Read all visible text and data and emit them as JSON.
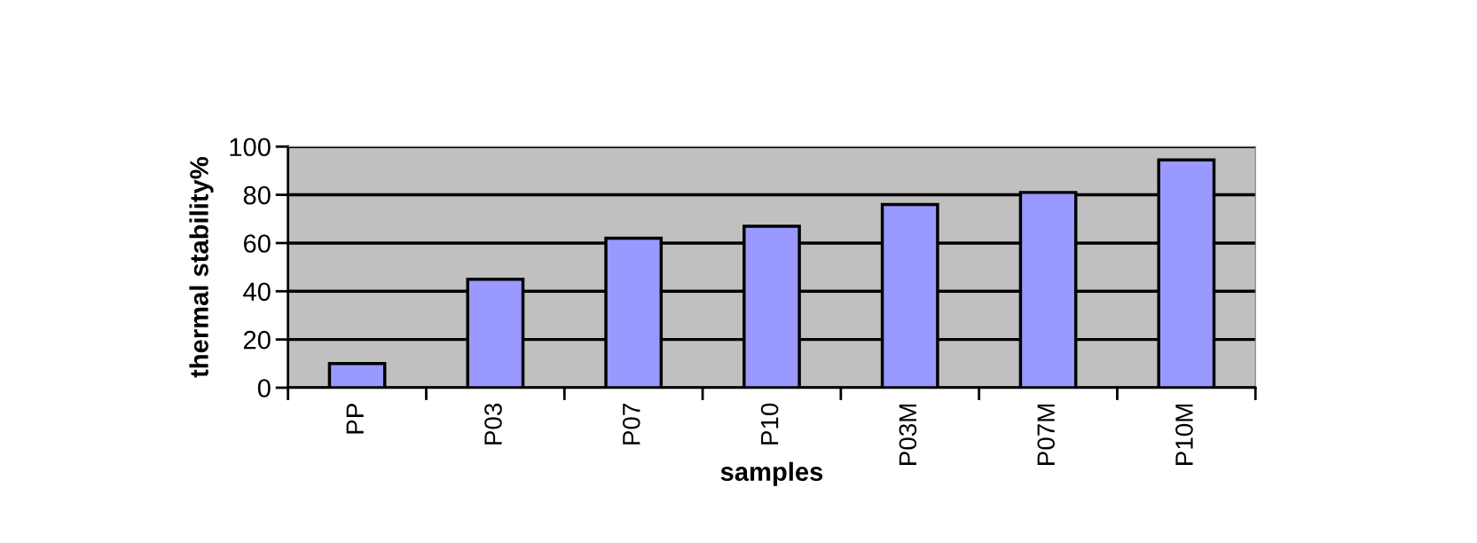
{
  "chart_data": {
    "type": "bar",
    "xlabel": "samples",
    "ylabel": "thermal stability%",
    "categories": [
      "PP",
      "P03",
      "P07",
      "P10",
      "P03M",
      "P07M",
      "P10M"
    ],
    "values": [
      10,
      45,
      62,
      67,
      76,
      81,
      94.5
    ],
    "color": "#9999ff",
    "ylim": [
      0,
      100
    ],
    "yticks": [
      0,
      20,
      40,
      60,
      80,
      100
    ],
    "grid": "y",
    "legend": false
  }
}
